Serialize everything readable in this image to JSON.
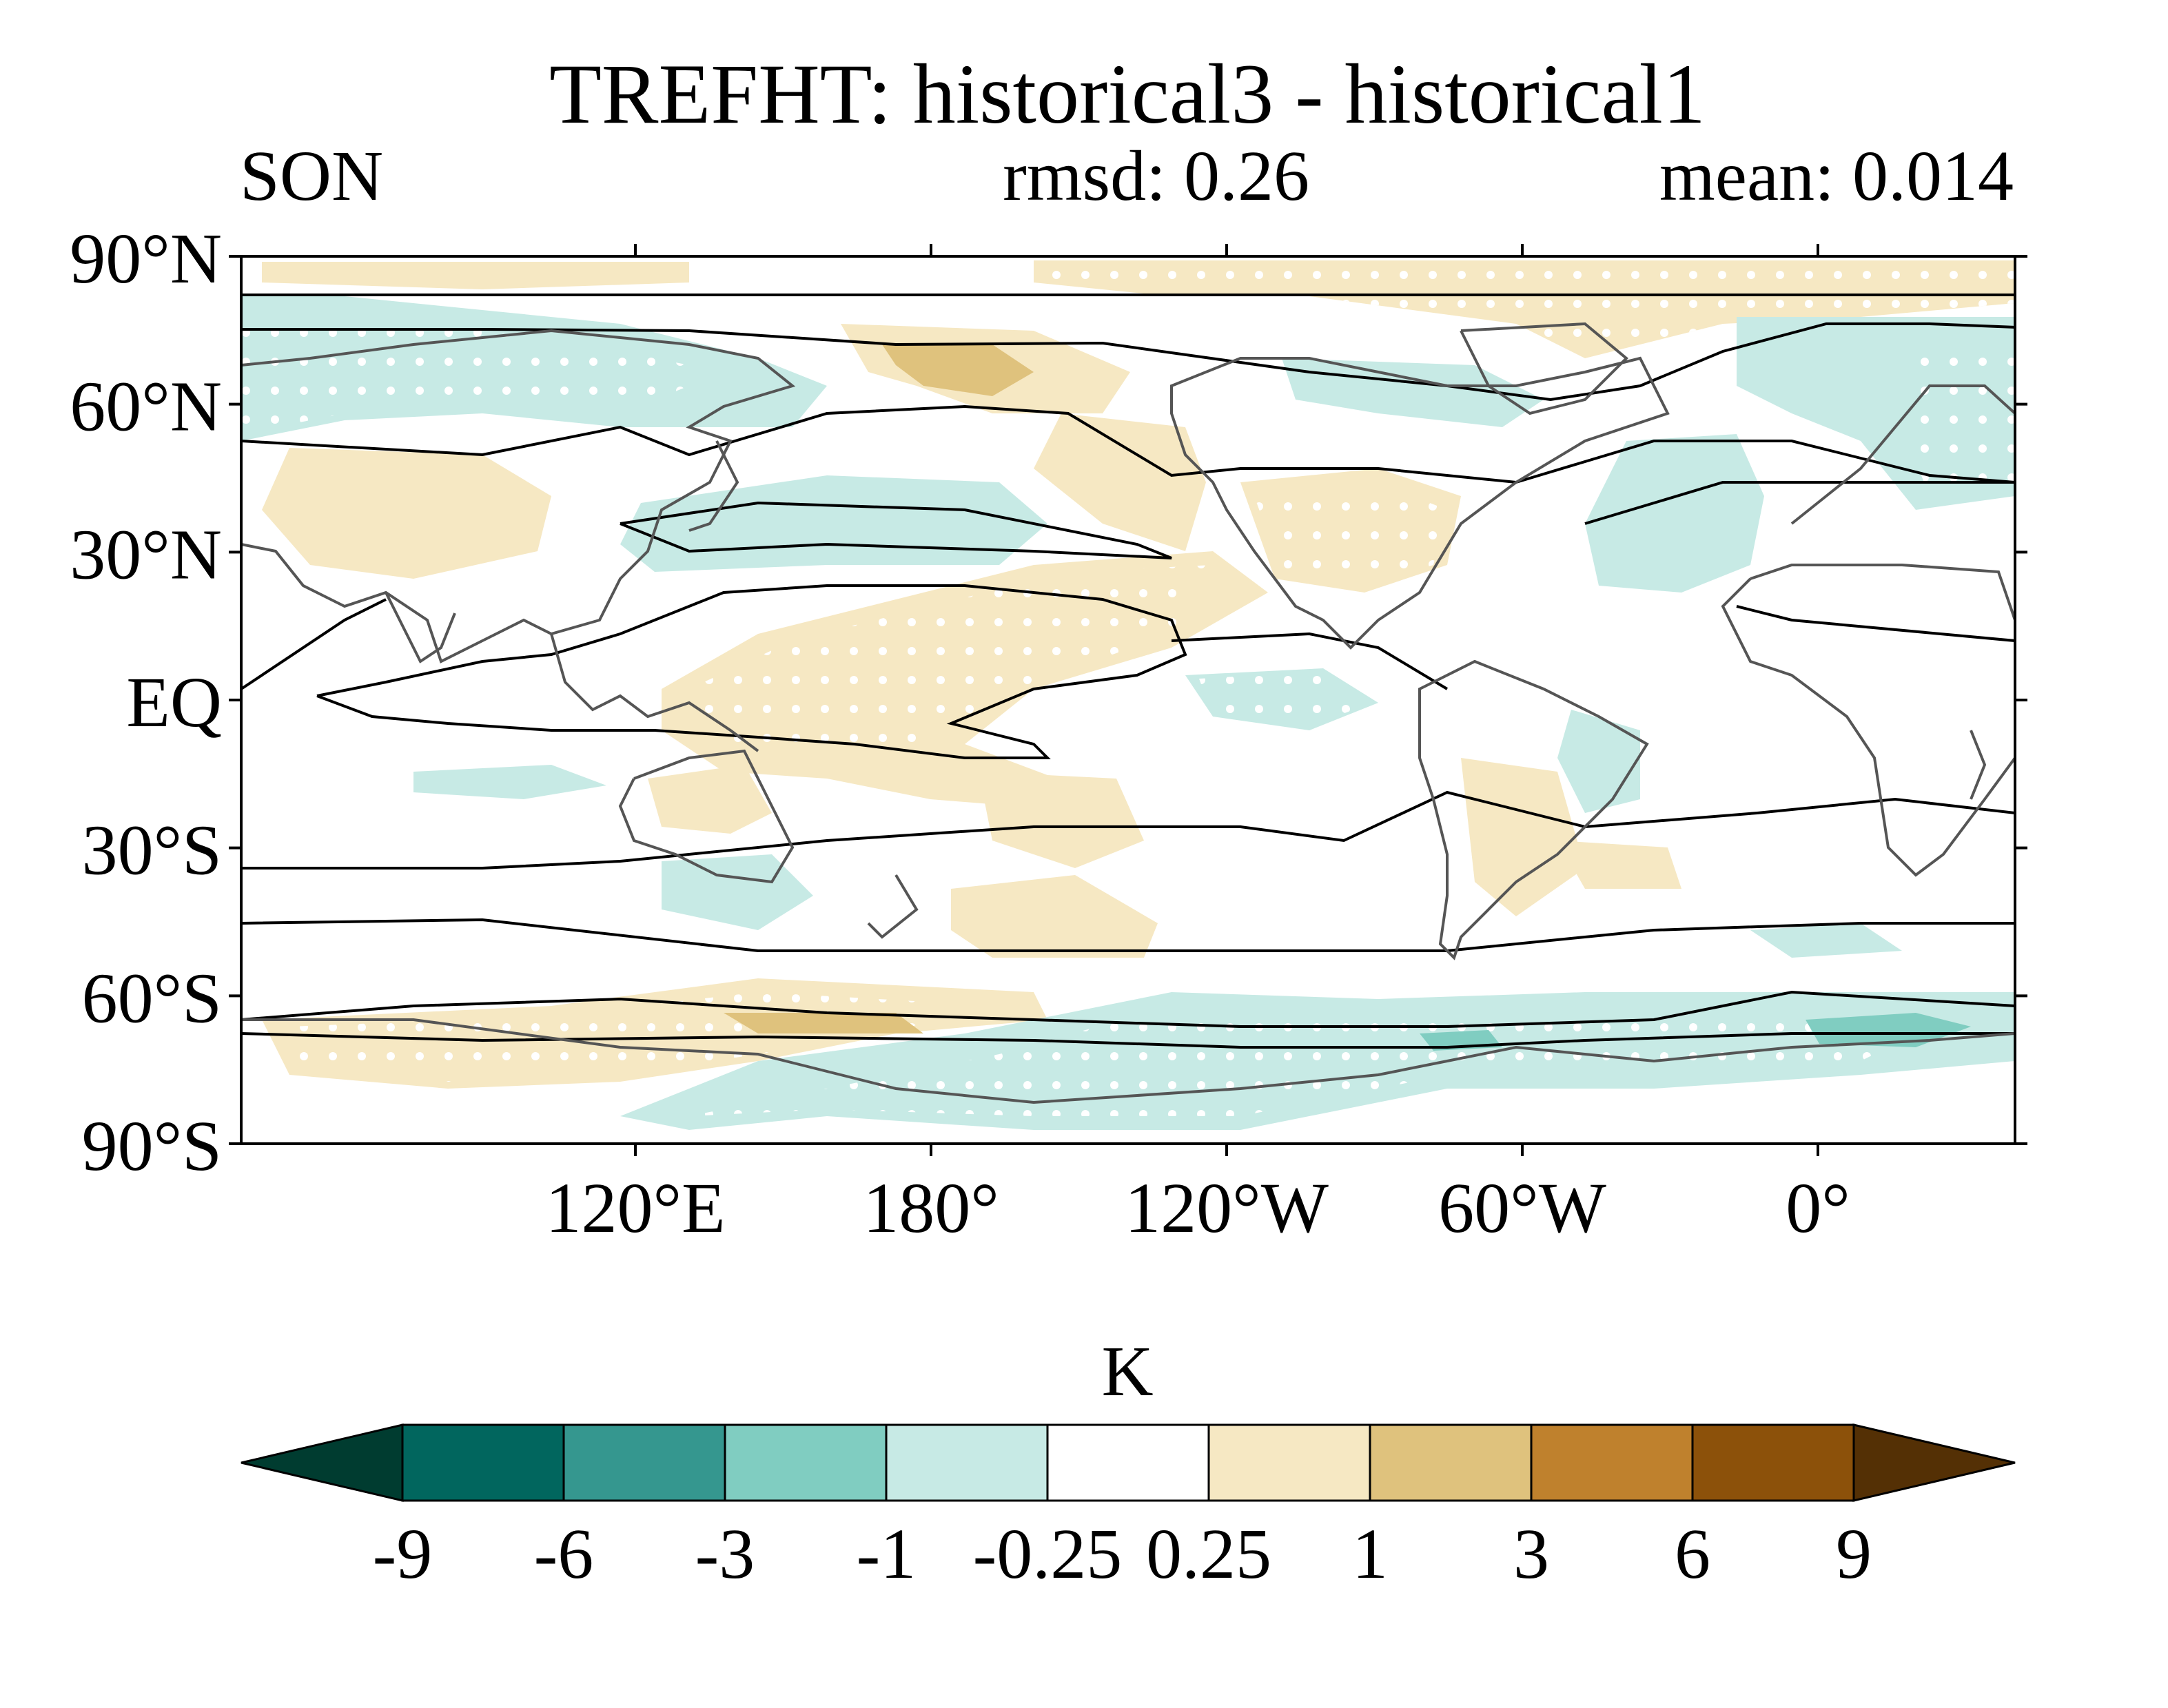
{
  "title": "TREFHT: historical3 - historical1",
  "subtitle": {
    "season": "SON",
    "rmsd": "rmsd: 0.26",
    "mean": "mean: 0.014"
  },
  "axes": {
    "lat_labels": [
      "90°N",
      "60°N",
      "30°N",
      "EQ",
      "30°S",
      "60°S",
      "90°S"
    ],
    "lat_values": [
      90,
      60,
      30,
      0,
      -30,
      -60,
      -90
    ],
    "lon_labels": [
      "120°E",
      "180°",
      "120°W",
      "60°W",
      "0°"
    ],
    "lon_values": [
      120,
      180,
      240,
      300,
      360
    ],
    "lon_range": [
      40,
      400
    ]
  },
  "colorbar": {
    "unit": "K",
    "levels": [
      "-9",
      "-6",
      "-3",
      "-1",
      "-0.25",
      "0.25",
      "1",
      "3",
      "6",
      "9"
    ],
    "colors": [
      "#003c30",
      "#01665e",
      "#35978f",
      "#80cdc1",
      "#c7eae5",
      "#ffffff",
      "#f6e8c3",
      "#dfc27d",
      "#bf812d",
      "#8c510a",
      "#543005"
    ]
  },
  "colors": {
    "stipple": "#ffffff",
    "coast": "#555555",
    "contour": "#000000"
  }
}
